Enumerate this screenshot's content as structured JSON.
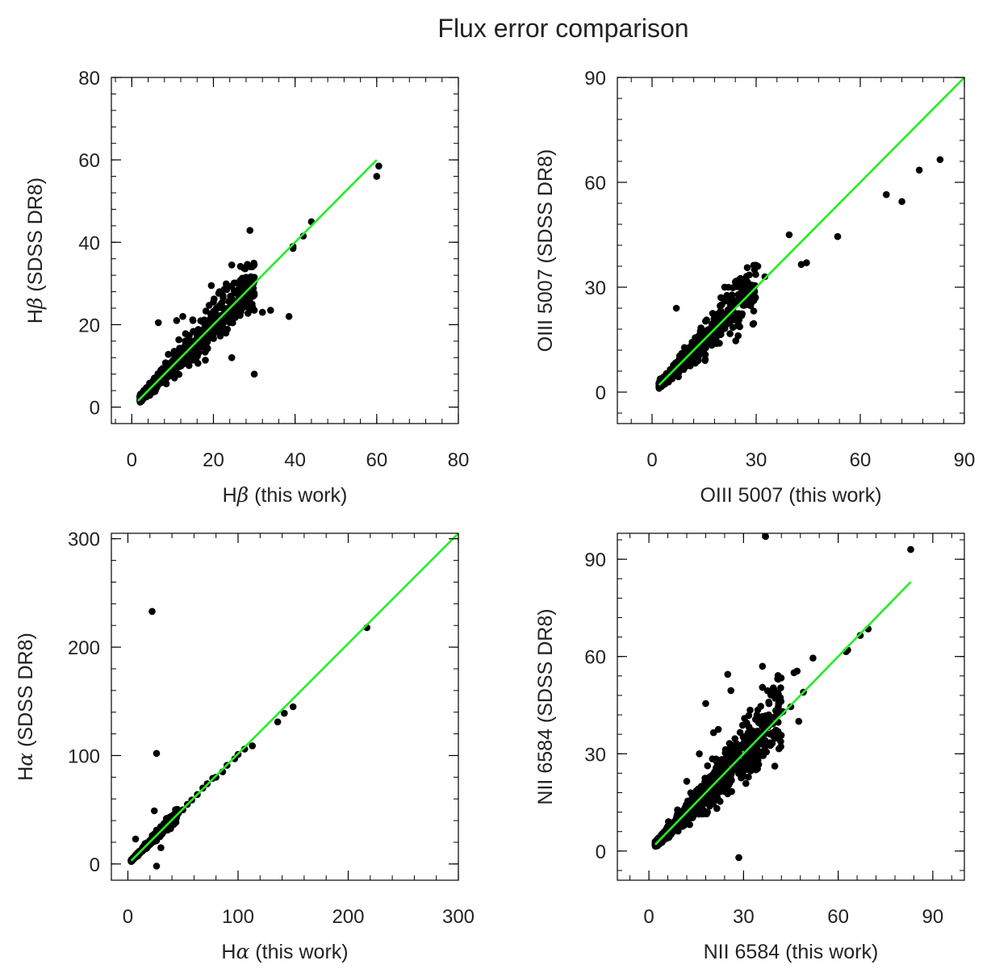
{
  "figure": {
    "title": "Flux error comparison"
  },
  "colors": {
    "points": "#000000",
    "fit_line": "#22ee22",
    "axes": "#000000"
  },
  "chart_data": [
    {
      "type": "scatter",
      "xlabel_parts": [
        "H",
        "β",
        " (this work)"
      ],
      "ylabel_parts": [
        "H",
        "β",
        " (SDSS DR8)"
      ],
      "xlim": [
        -5,
        80
      ],
      "ylim": [
        -4,
        80
      ],
      "xticks": [
        0,
        20,
        40,
        60,
        80
      ],
      "yticks": [
        0,
        20,
        40,
        60,
        80
      ],
      "line": [
        [
          1.5,
          1.5
        ],
        [
          60,
          60
        ]
      ],
      "cloud": {
        "x_range": [
          2,
          30
        ],
        "spread": 0.22,
        "n": 700,
        "seed": 11
      },
      "points": [
        [
          60.5,
          58.5
        ],
        [
          60,
          56
        ],
        [
          44,
          45
        ],
        [
          42,
          41.5
        ],
        [
          39.5,
          39
        ],
        [
          39.5,
          38.5
        ],
        [
          38.5,
          22
        ],
        [
          34,
          23.5
        ],
        [
          32,
          23
        ],
        [
          30,
          8
        ],
        [
          29,
          27.5
        ],
        [
          30,
          31.5
        ],
        [
          24.5,
          34.5
        ],
        [
          24.5,
          12
        ],
        [
          21,
          22
        ],
        [
          20,
          25.5
        ],
        [
          19.5,
          29.5
        ],
        [
          15,
          21
        ],
        [
          12.5,
          22
        ],
        [
          11,
          21
        ],
        [
          6.5,
          20.5
        ],
        [
          30,
          23.5
        ]
      ]
    },
    {
      "type": "scatter",
      "xlabel_parts": [
        "OIII 5007 (this work)"
      ],
      "ylabel_parts": [
        "OIII 5007 (SDSS DR8)"
      ],
      "xlim": [
        -10,
        90
      ],
      "ylim": [
        -9,
        90
      ],
      "xticks": [
        0,
        30,
        60,
        90
      ],
      "yticks": [
        0,
        30,
        60,
        90
      ],
      "line": [
        [
          2,
          2
        ],
        [
          90,
          90
        ]
      ],
      "cloud": {
        "x_range": [
          2,
          30
        ],
        "spread": 0.22,
        "n": 700,
        "seed": 23
      },
      "points": [
        [
          83,
          66.5
        ],
        [
          77,
          63.5
        ],
        [
          72,
          54.5
        ],
        [
          67.5,
          56.5
        ],
        [
          53.5,
          44.5
        ],
        [
          44.5,
          37
        ],
        [
          43,
          36.5
        ],
        [
          39.5,
          45
        ],
        [
          32.5,
          33
        ],
        [
          30.5,
          36
        ],
        [
          29.5,
          35
        ],
        [
          28,
          33.5
        ],
        [
          27.5,
          31.5
        ],
        [
          25.5,
          32.5
        ],
        [
          7,
          24
        ],
        [
          22,
          30
        ],
        [
          24,
          31.5
        ],
        [
          26,
          29
        ]
      ]
    },
    {
      "type": "scatter",
      "xlabel_parts": [
        "H",
        "α",
        " (this work)"
      ],
      "ylabel_parts": [
        "H",
        "α",
        " (SDSS DR8)"
      ],
      "xlim": [
        -15,
        300
      ],
      "ylim": [
        -15,
        305
      ],
      "xticks": [
        0,
        100,
        200,
        300
      ],
      "yticks": [
        0,
        100,
        200,
        300
      ],
      "line": [
        [
          3,
          3
        ],
        [
          300,
          305
        ]
      ],
      "cloud": {
        "x_range": [
          3,
          45
        ],
        "spread": 0.12,
        "n": 420,
        "seed": 37
      },
      "points": [
        [
          217,
          218
        ],
        [
          150,
          145
        ],
        [
          142,
          139
        ],
        [
          136,
          131
        ],
        [
          113,
          109
        ],
        [
          106,
          106
        ],
        [
          100,
          101
        ],
        [
          97,
          97
        ],
        [
          90,
          91
        ],
        [
          86,
          85
        ],
        [
          80,
          80
        ],
        [
          77,
          79
        ],
        [
          72,
          74
        ],
        [
          68,
          70
        ],
        [
          63,
          64
        ],
        [
          58,
          59
        ],
        [
          54,
          55
        ],
        [
          50,
          50
        ],
        [
          46,
          47
        ],
        [
          22,
          233
        ],
        [
          26,
          102
        ],
        [
          26,
          -2
        ],
        [
          24,
          49
        ],
        [
          7,
          23
        ],
        [
          30,
          15
        ],
        [
          35,
          42
        ],
        [
          40,
          38
        ],
        [
          30,
          34
        ]
      ]
    },
    {
      "type": "scatter",
      "xlabel_parts": [
        "NII 6584 (this work)"
      ],
      "ylabel_parts": [
        "NII 6584 (SDSS DR8)"
      ],
      "xlim": [
        -10,
        100
      ],
      "ylim": [
        -9,
        98
      ],
      "xticks": [
        0,
        30,
        60,
        90
      ],
      "yticks": [
        0,
        30,
        60,
        90
      ],
      "line": [
        [
          2,
          2
        ],
        [
          83,
          83
        ]
      ],
      "cloud": {
        "x_range": [
          2,
          42
        ],
        "spread": 0.24,
        "n": 900,
        "seed": 53
      },
      "points": [
        [
          37,
          97
        ],
        [
          83,
          93
        ],
        [
          69.5,
          68.5
        ],
        [
          67,
          66.5
        ],
        [
          63,
          62
        ],
        [
          62.5,
          61.5
        ],
        [
          52,
          59.5
        ],
        [
          47,
          55.5
        ],
        [
          46,
          55
        ],
        [
          41,
          53
        ],
        [
          36,
          57
        ],
        [
          25,
          54.5
        ],
        [
          18,
          45.5
        ],
        [
          26,
          49.5
        ],
        [
          36,
          50.5
        ],
        [
          41,
          48.5
        ],
        [
          49,
          49
        ],
        [
          47.5,
          40
        ],
        [
          45,
          44.5
        ],
        [
          42.5,
          43
        ],
        [
          38,
          42
        ],
        [
          34.5,
          43.5
        ],
        [
          28.5,
          -2
        ],
        [
          20.5,
          36.5
        ],
        [
          16,
          30
        ],
        [
          12,
          21.5
        ],
        [
          22,
          37.5
        ],
        [
          31,
          39.5
        ],
        [
          33.5,
          35
        ]
      ]
    }
  ]
}
